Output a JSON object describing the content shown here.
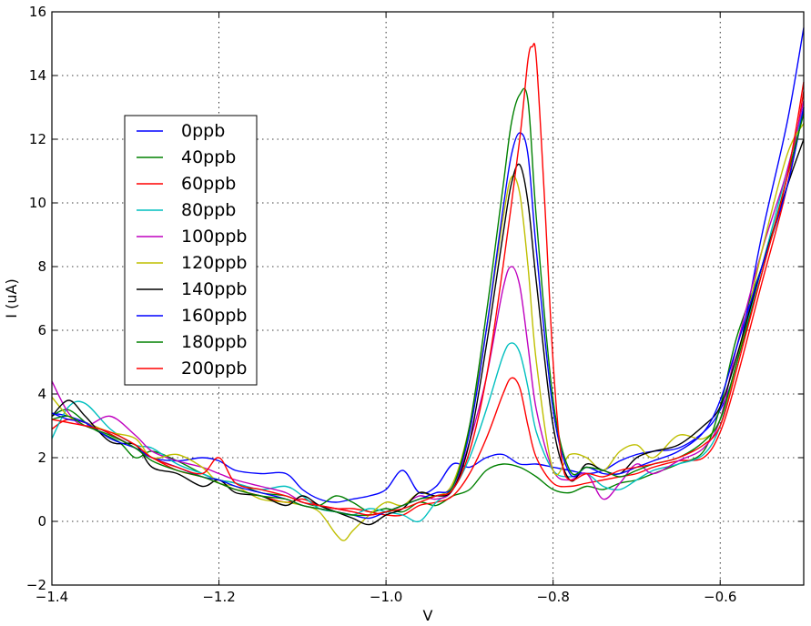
{
  "chart_data": {
    "type": "line",
    "xlabel": "V",
    "ylabel": "I (uA)",
    "xlim": [
      -1.4,
      -0.5
    ],
    "ylim": [
      -2,
      16
    ],
    "xticks": [
      -1.4,
      -1.2,
      -1.0,
      -0.8,
      -0.6
    ],
    "xtick_labels": [
      "−1.4",
      "−1.2",
      "−1.0",
      "−0.8",
      "−0.6"
    ],
    "yticks": [
      -2,
      0,
      2,
      4,
      6,
      8,
      10,
      12,
      14,
      16
    ],
    "ytick_labels": [
      "−2",
      "0",
      "2",
      "4",
      "6",
      "8",
      "10",
      "12",
      "14",
      "16"
    ],
    "grid": true,
    "legend_position": "upper-left",
    "series": [
      {
        "name": "0ppb",
        "color": "#0000ff",
        "x": [
          -1.4,
          -1.38,
          -1.35,
          -1.32,
          -1.3,
          -1.28,
          -1.25,
          -1.22,
          -1.2,
          -1.18,
          -1.15,
          -1.12,
          -1.1,
          -1.08,
          -1.06,
          -1.04,
          -1.02,
          -1.0,
          -0.98,
          -0.96,
          -0.94,
          -0.92,
          -0.9,
          -0.88,
          -0.86,
          -0.84,
          -0.82,
          -0.8,
          -0.78,
          -0.76,
          -0.74,
          -0.72,
          -0.7,
          -0.68,
          -0.65,
          -0.62,
          -0.6,
          -0.58,
          -0.55,
          -0.52,
          -0.5
        ],
        "y": [
          3.4,
          3.3,
          3.0,
          2.6,
          2.3,
          2.0,
          1.9,
          2.0,
          1.9,
          1.6,
          1.5,
          1.5,
          1.0,
          0.7,
          0.6,
          0.7,
          0.8,
          1.0,
          1.6,
          0.9,
          1.1,
          1.8,
          1.7,
          2.0,
          2.1,
          1.8,
          1.8,
          1.7,
          1.6,
          1.5,
          1.6,
          1.9,
          2.1,
          2.2,
          2.3,
          2.8,
          3.5,
          5.0,
          9.0,
          12.5,
          15.5
        ]
      },
      {
        "name": "40ppb",
        "color": "#008000",
        "x": [
          -1.4,
          -1.38,
          -1.35,
          -1.32,
          -1.3,
          -1.28,
          -1.25,
          -1.22,
          -1.2,
          -1.18,
          -1.15,
          -1.12,
          -1.1,
          -1.08,
          -1.06,
          -1.04,
          -1.02,
          -1.0,
          -0.98,
          -0.96,
          -0.94,
          -0.92,
          -0.9,
          -0.88,
          -0.86,
          -0.84,
          -0.82,
          -0.8,
          -0.78,
          -0.76,
          -0.74,
          -0.72,
          -0.7,
          -0.68,
          -0.65,
          -0.62,
          -0.6,
          -0.58,
          -0.55,
          -0.52,
          -0.5
        ],
        "y": [
          3.3,
          3.5,
          2.9,
          2.5,
          2.0,
          2.2,
          1.9,
          1.5,
          1.3,
          1.2,
          0.9,
          0.8,
          0.6,
          0.5,
          0.8,
          0.6,
          0.3,
          0.4,
          0.3,
          0.6,
          0.5,
          0.8,
          1.0,
          1.6,
          1.8,
          1.7,
          1.4,
          1.0,
          0.9,
          1.1,
          1.0,
          1.2,
          1.3,
          1.5,
          1.8,
          2.2,
          3.6,
          5.8,
          8.0,
          10.5,
          13.0
        ]
      },
      {
        "name": "60ppb",
        "color": "#ff0000",
        "x": [
          -1.4,
          -1.38,
          -1.35,
          -1.32,
          -1.3,
          -1.28,
          -1.25,
          -1.22,
          -1.2,
          -1.18,
          -1.15,
          -1.12,
          -1.1,
          -1.08,
          -1.06,
          -1.04,
          -1.02,
          -1.0,
          -0.98,
          -0.96,
          -0.94,
          -0.92,
          -0.9,
          -0.88,
          -0.86,
          -0.85,
          -0.84,
          -0.83,
          -0.82,
          -0.8,
          -0.78,
          -0.76,
          -0.74,
          -0.72,
          -0.7,
          -0.68,
          -0.65,
          -0.62,
          -0.6,
          -0.58,
          -0.55,
          -0.52,
          -0.5
        ],
        "y": [
          2.9,
          3.2,
          3.0,
          2.6,
          2.3,
          2.0,
          1.6,
          1.4,
          1.2,
          1.0,
          0.8,
          0.6,
          0.7,
          0.5,
          0.4,
          0.4,
          0.3,
          0.2,
          0.2,
          0.5,
          0.6,
          0.8,
          1.5,
          2.6,
          4.0,
          4.5,
          4.2,
          3.0,
          2.0,
          1.2,
          1.1,
          1.2,
          1.3,
          1.4,
          1.5,
          1.7,
          1.9,
          2.0,
          2.8,
          4.5,
          7.5,
          10.5,
          13.5
        ]
      },
      {
        "name": "80ppb",
        "color": "#00bfbf",
        "x": [
          -1.4,
          -1.38,
          -1.36,
          -1.33,
          -1.3,
          -1.28,
          -1.25,
          -1.22,
          -1.2,
          -1.18,
          -1.15,
          -1.12,
          -1.1,
          -1.08,
          -1.06,
          -1.04,
          -1.02,
          -1.0,
          -0.98,
          -0.96,
          -0.94,
          -0.92,
          -0.9,
          -0.88,
          -0.86,
          -0.85,
          -0.84,
          -0.83,
          -0.82,
          -0.8,
          -0.78,
          -0.76,
          -0.74,
          -0.72,
          -0.7,
          -0.68,
          -0.65,
          -0.62,
          -0.6,
          -0.58,
          -0.55,
          -0.52,
          -0.5
        ],
        "y": [
          2.6,
          3.6,
          3.7,
          2.9,
          2.4,
          2.3,
          1.8,
          1.5,
          1.3,
          1.2,
          1.0,
          1.1,
          0.8,
          0.4,
          0.3,
          0.2,
          0.4,
          0.3,
          0.2,
          0.0,
          0.6,
          1.0,
          2.0,
          3.5,
          5.2,
          5.6,
          5.3,
          4.2,
          2.8,
          1.6,
          1.4,
          1.5,
          1.1,
          1.0,
          1.3,
          1.6,
          1.8,
          2.1,
          3.0,
          5.0,
          8.0,
          11.0,
          13.0
        ]
      },
      {
        "name": "100ppb",
        "color": "#bf00bf",
        "x": [
          -1.4,
          -1.38,
          -1.36,
          -1.33,
          -1.3,
          -1.28,
          -1.25,
          -1.22,
          -1.2,
          -1.18,
          -1.15,
          -1.12,
          -1.1,
          -1.08,
          -1.06,
          -1.04,
          -1.02,
          -1.0,
          -0.98,
          -0.96,
          -0.94,
          -0.92,
          -0.9,
          -0.88,
          -0.86,
          -0.85,
          -0.84,
          -0.83,
          -0.82,
          -0.8,
          -0.78,
          -0.76,
          -0.74,
          -0.72,
          -0.7,
          -0.68,
          -0.65,
          -0.62,
          -0.6,
          -0.58,
          -0.55,
          -0.52,
          -0.5
        ],
        "y": [
          4.4,
          3.4,
          3.0,
          3.3,
          2.7,
          2.2,
          1.9,
          1.7,
          1.5,
          1.3,
          1.1,
          0.9,
          0.6,
          0.5,
          0.4,
          0.3,
          0.2,
          0.3,
          0.5,
          0.8,
          0.7,
          1.0,
          2.5,
          4.5,
          7.3,
          8.0,
          7.4,
          5.5,
          3.5,
          1.6,
          1.3,
          1.5,
          0.7,
          1.2,
          1.8,
          1.5,
          1.9,
          2.3,
          3.2,
          5.5,
          8.5,
          11.0,
          13.2
        ]
      },
      {
        "name": "120ppb",
        "color": "#bfbf00",
        "x": [
          -1.4,
          -1.38,
          -1.36,
          -1.33,
          -1.3,
          -1.28,
          -1.25,
          -1.22,
          -1.2,
          -1.18,
          -1.15,
          -1.12,
          -1.1,
          -1.08,
          -1.06,
          -1.05,
          -1.04,
          -1.02,
          -1.0,
          -0.98,
          -0.96,
          -0.94,
          -0.92,
          -0.9,
          -0.88,
          -0.86,
          -0.85,
          -0.84,
          -0.83,
          -0.82,
          -0.8,
          -0.78,
          -0.76,
          -0.74,
          -0.72,
          -0.7,
          -0.68,
          -0.65,
          -0.62,
          -0.6,
          -0.58,
          -0.55,
          -0.52,
          -0.5
        ],
        "y": [
          3.9,
          3.3,
          3.1,
          2.8,
          2.6,
          2.0,
          2.1,
          1.7,
          1.2,
          1.1,
          0.7,
          0.6,
          0.5,
          0.3,
          -0.4,
          -0.6,
          -0.3,
          0.2,
          0.6,
          0.5,
          0.9,
          0.8,
          1.2,
          3.0,
          6.0,
          9.5,
          10.8,
          10.3,
          8.0,
          5.0,
          1.6,
          2.1,
          2.0,
          1.6,
          2.2,
          2.4,
          2.0,
          2.7,
          2.6,
          3.2,
          5.0,
          8.5,
          11.5,
          12.5
        ]
      },
      {
        "name": "140ppb",
        "color": "#000000",
        "x": [
          -1.4,
          -1.38,
          -1.36,
          -1.33,
          -1.3,
          -1.28,
          -1.25,
          -1.22,
          -1.2,
          -1.18,
          -1.15,
          -1.12,
          -1.1,
          -1.08,
          -1.06,
          -1.04,
          -1.02,
          -1.0,
          -0.98,
          -0.96,
          -0.94,
          -0.92,
          -0.9,
          -0.88,
          -0.86,
          -0.85,
          -0.84,
          -0.83,
          -0.82,
          -0.8,
          -0.78,
          -0.76,
          -0.74,
          -0.72,
          -0.7,
          -0.68,
          -0.65,
          -0.62,
          -0.6,
          -0.58,
          -0.55,
          -0.52,
          -0.5
        ],
        "y": [
          3.3,
          3.8,
          3.3,
          2.5,
          2.4,
          1.7,
          1.5,
          1.1,
          1.3,
          0.9,
          0.8,
          0.5,
          0.8,
          0.5,
          0.3,
          0.1,
          -0.1,
          0.2,
          0.4,
          0.9,
          0.8,
          1.0,
          2.5,
          5.5,
          9.0,
          10.6,
          11.2,
          10.0,
          7.5,
          3.0,
          1.3,
          1.8,
          1.6,
          1.5,
          2.0,
          2.2,
          2.4,
          3.0,
          3.6,
          5.2,
          8.0,
          10.5,
          12.0
        ]
      },
      {
        "name": "160ppb",
        "color": "#0000ff",
        "x": [
          -1.4,
          -1.38,
          -1.36,
          -1.33,
          -1.3,
          -1.28,
          -1.25,
          -1.22,
          -1.2,
          -1.18,
          -1.15,
          -1.12,
          -1.1,
          -1.08,
          -1.06,
          -1.04,
          -1.02,
          -1.0,
          -0.98,
          -0.96,
          -0.94,
          -0.92,
          -0.9,
          -0.88,
          -0.86,
          -0.85,
          -0.84,
          -0.83,
          -0.82,
          -0.8,
          -0.78,
          -0.76,
          -0.74,
          -0.72,
          -0.7,
          -0.68,
          -0.65,
          -0.62,
          -0.6,
          -0.58,
          -0.55,
          -0.52,
          -0.5
        ],
        "y": [
          3.4,
          3.2,
          3.1,
          2.6,
          2.3,
          2.0,
          1.7,
          1.4,
          1.3,
          1.1,
          0.9,
          0.7,
          0.5,
          0.4,
          0.3,
          0.2,
          0.1,
          0.3,
          0.5,
          0.7,
          0.9,
          1.1,
          2.8,
          6.0,
          9.8,
          11.5,
          12.2,
          11.5,
          8.5,
          3.5,
          1.5,
          1.7,
          1.5,
          1.5,
          1.7,
          1.9,
          2.2,
          2.8,
          3.8,
          5.5,
          8.0,
          10.5,
          13.0
        ]
      },
      {
        "name": "180ppb",
        "color": "#008000",
        "x": [
          -1.4,
          -1.38,
          -1.36,
          -1.33,
          -1.3,
          -1.28,
          -1.25,
          -1.22,
          -1.2,
          -1.18,
          -1.15,
          -1.12,
          -1.1,
          -1.08,
          -1.06,
          -1.04,
          -1.02,
          -1.0,
          -0.98,
          -0.96,
          -0.94,
          -0.92,
          -0.9,
          -0.88,
          -0.86,
          -0.85,
          -0.84,
          -0.83,
          -0.82,
          -0.8,
          -0.78,
          -0.76,
          -0.74,
          -0.72,
          -0.7,
          -0.68,
          -0.65,
          -0.62,
          -0.6,
          -0.58,
          -0.55,
          -0.52,
          -0.5
        ],
        "y": [
          3.2,
          3.3,
          3.0,
          2.7,
          2.3,
          1.9,
          1.6,
          1.4,
          1.2,
          1.0,
          0.8,
          0.7,
          0.5,
          0.4,
          0.3,
          0.2,
          0.2,
          0.3,
          0.5,
          0.7,
          0.8,
          1.1,
          3.0,
          6.5,
          10.5,
          12.5,
          13.4,
          13.2,
          9.5,
          3.8,
          1.6,
          1.7,
          1.6,
          1.4,
          1.6,
          1.8,
          2.0,
          2.5,
          3.2,
          5.0,
          7.8,
          10.8,
          12.8
        ]
      },
      {
        "name": "200ppb",
        "color": "#ff0000",
        "x": [
          -1.4,
          -1.38,
          -1.36,
          -1.33,
          -1.3,
          -1.28,
          -1.25,
          -1.22,
          -1.2,
          -1.18,
          -1.15,
          -1.12,
          -1.1,
          -1.08,
          -1.06,
          -1.04,
          -1.02,
          -1.0,
          -0.98,
          -0.96,
          -0.94,
          -0.92,
          -0.9,
          -0.88,
          -0.86,
          -0.84,
          -0.83,
          -0.825,
          -0.82,
          -0.81,
          -0.8,
          -0.79,
          -0.78,
          -0.76,
          -0.74,
          -0.72,
          -0.7,
          -0.68,
          -0.65,
          -0.62,
          -0.6,
          -0.58,
          -0.55,
          -0.52,
          -0.5
        ],
        "y": [
          3.2,
          3.1,
          3.0,
          2.8,
          2.4,
          2.0,
          1.7,
          1.5,
          2.0,
          1.2,
          1.0,
          0.8,
          0.6,
          0.5,
          0.4,
          0.3,
          0.2,
          0.3,
          0.4,
          0.6,
          0.8,
          1.0,
          2.2,
          4.5,
          8.0,
          12.0,
          14.5,
          14.9,
          14.5,
          10.0,
          5.0,
          2.0,
          1.3,
          1.5,
          1.4,
          1.6,
          1.7,
          1.8,
          2.0,
          2.4,
          3.0,
          4.8,
          7.8,
          10.8,
          13.8
        ]
      }
    ]
  }
}
